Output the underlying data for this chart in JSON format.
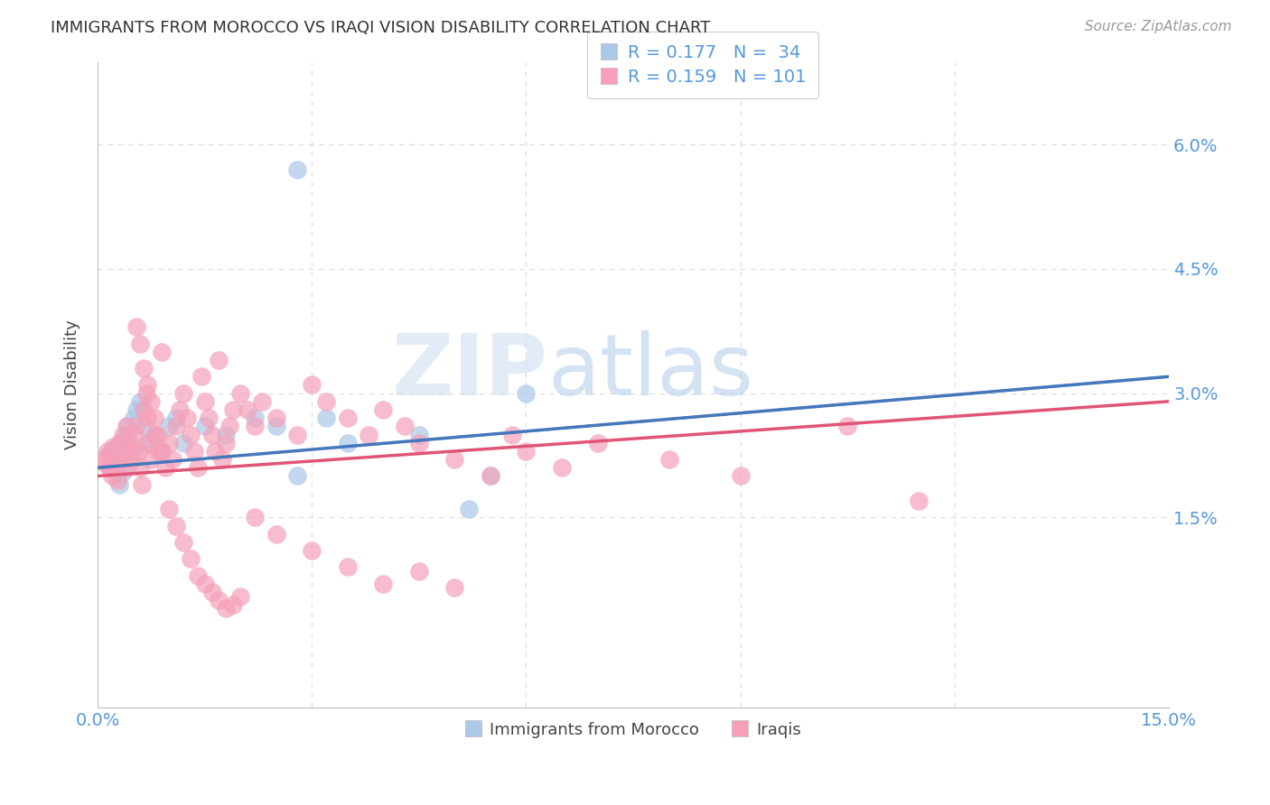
{
  "title": "IMMIGRANTS FROM MOROCCO VS IRAQI VISION DISABILITY CORRELATION CHART",
  "source": "Source: ZipAtlas.com",
  "ylabel": "Vision Disability",
  "xlim": [
    0.0,
    15.0
  ],
  "ylim": [
    -0.8,
    7.0
  ],
  "ytick_vals": [
    0.0,
    1.5,
    3.0,
    4.5,
    6.0
  ],
  "ytick_labels": [
    "",
    "1.5%",
    "3.0%",
    "4.5%",
    "6.0%"
  ],
  "xtick_vals": [
    0.0,
    3.0,
    6.0,
    9.0,
    12.0,
    15.0
  ],
  "morocco_R": 0.177,
  "morocco_N": 34,
  "iraqi_R": 0.159,
  "iraqi_N": 101,
  "morocco_color": "#aac8e8",
  "iraqi_color": "#f5a0b8",
  "trendline_morocco_color": "#4477bb",
  "trendline_iraqi_color": "#e05575",
  "legend_morocco": "Immigrants from Morocco",
  "legend_iraqi": "Iraqis",
  "background_color": "#ffffff",
  "watermark_zip": "ZIP",
  "watermark_atlas": "atlas",
  "grid_color": "#dddddd",
  "tick_color": "#5599dd",
  "morocco_x": [
    0.15,
    0.18,
    0.2,
    0.22,
    0.25,
    0.28,
    0.3,
    0.33,
    0.35,
    0.4,
    0.42,
    0.45,
    0.5,
    0.55,
    0.6,
    0.65,
    0.7,
    0.8,
    0.9,
    1.0,
    1.1,
    1.2,
    1.5,
    1.8,
    2.2,
    2.5,
    2.8,
    3.2,
    3.5,
    4.5,
    5.5,
    6.0,
    2.8,
    5.2
  ],
  "morocco_y": [
    2.25,
    2.1,
    2.3,
    2.15,
    2.2,
    2.35,
    1.9,
    2.4,
    2.05,
    2.5,
    2.6,
    2.3,
    2.7,
    2.8,
    2.9,
    2.6,
    2.4,
    2.5,
    2.3,
    2.6,
    2.7,
    2.4,
    2.6,
    2.5,
    2.7,
    2.6,
    2.0,
    2.7,
    2.4,
    2.5,
    2.0,
    3.0,
    5.7,
    1.6
  ],
  "iraqi_x": [
    0.1,
    0.12,
    0.14,
    0.16,
    0.18,
    0.2,
    0.22,
    0.24,
    0.26,
    0.28,
    0.3,
    0.32,
    0.35,
    0.38,
    0.4,
    0.42,
    0.45,
    0.48,
    0.5,
    0.52,
    0.55,
    0.58,
    0.6,
    0.62,
    0.65,
    0.68,
    0.7,
    0.72,
    0.75,
    0.8,
    0.85,
    0.9,
    0.95,
    1.0,
    1.05,
    1.1,
    1.15,
    1.2,
    1.25,
    1.3,
    1.35,
    1.4,
    1.45,
    1.5,
    1.55,
    1.6,
    1.65,
    1.7,
    1.75,
    1.8,
    1.85,
    1.9,
    2.0,
    2.1,
    2.2,
    2.3,
    2.5,
    2.8,
    3.0,
    3.2,
    3.5,
    3.8,
    4.0,
    4.3,
    4.5,
    5.0,
    5.5,
    5.8,
    6.0,
    6.5,
    7.0,
    8.0,
    9.0,
    10.5,
    11.5,
    0.55,
    0.6,
    0.65,
    0.7,
    0.75,
    0.8,
    0.85,
    0.9,
    1.0,
    1.1,
    1.2,
    1.3,
    1.4,
    1.5,
    1.6,
    1.7,
    1.8,
    1.9,
    2.0,
    2.2,
    2.5,
    3.0,
    3.5,
    4.0,
    4.5,
    5.0
  ],
  "iraqi_y": [
    2.2,
    2.15,
    2.3,
    2.1,
    2.25,
    2.0,
    2.35,
    2.2,
    2.1,
    1.95,
    2.4,
    2.2,
    2.5,
    2.3,
    2.6,
    2.1,
    2.4,
    2.2,
    2.3,
    2.5,
    2.6,
    2.3,
    2.1,
    1.9,
    2.8,
    3.0,
    2.7,
    2.4,
    2.2,
    2.5,
    2.3,
    3.5,
    2.1,
    2.4,
    2.2,
    2.6,
    2.8,
    3.0,
    2.7,
    2.5,
    2.3,
    2.1,
    3.2,
    2.9,
    2.7,
    2.5,
    2.3,
    3.4,
    2.2,
    2.4,
    2.6,
    2.8,
    3.0,
    2.8,
    2.6,
    2.9,
    2.7,
    2.5,
    3.1,
    2.9,
    2.7,
    2.5,
    2.8,
    2.6,
    2.4,
    2.2,
    2.0,
    2.5,
    2.3,
    2.1,
    2.4,
    2.2,
    2.0,
    2.6,
    1.7,
    3.8,
    3.6,
    3.3,
    3.1,
    2.9,
    2.7,
    2.5,
    2.3,
    1.6,
    1.4,
    1.2,
    1.0,
    0.8,
    0.7,
    0.6,
    0.5,
    0.4,
    0.45,
    0.55,
    1.5,
    1.3,
    1.1,
    0.9,
    0.7,
    0.85,
    0.65
  ]
}
